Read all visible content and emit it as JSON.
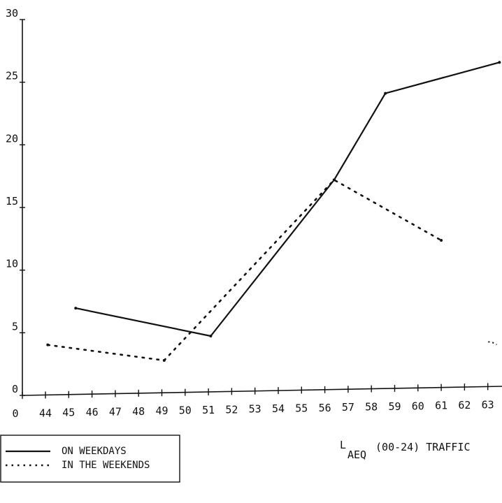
{
  "chart_data": {
    "type": "line",
    "title": "",
    "xlabel": {
      "main": "L",
      "sub": "AEQ",
      "rest": " (00-24) TRAFFIC"
    },
    "ylabel": "",
    "x_ticks": [
      "0",
      "44",
      "45",
      "46",
      "47",
      "48",
      "49",
      "50",
      "51",
      "52",
      "53",
      "54",
      "55",
      "56",
      "57",
      "58",
      "59",
      "60",
      "61",
      "62",
      "63"
    ],
    "y_ticks": [
      "0",
      "5",
      "10",
      "15",
      "20",
      "25",
      "30"
    ],
    "ylim": [
      0,
      30
    ],
    "grid": false,
    "legend_position": "bottom-left",
    "series": [
      {
        "name": "ON WEEKDAYS",
        "style": "solid",
        "color": "#111111",
        "points": [
          [
            45.3,
            6.9
          ],
          [
            51.1,
            4.5
          ],
          [
            56.4,
            17.0
          ],
          [
            58.6,
            24.0
          ],
          [
            63.5,
            26.5
          ]
        ]
      },
      {
        "name": "IN THE WEEKENDS",
        "style": "dotted",
        "color": "#111111",
        "points": [
          [
            44.1,
            4.0
          ],
          [
            49.1,
            2.6
          ],
          [
            56.4,
            17.0
          ],
          [
            61.0,
            12.0
          ]
        ]
      }
    ],
    "extra_marks": [
      [
        63.2,
        3.6
      ]
    ]
  }
}
